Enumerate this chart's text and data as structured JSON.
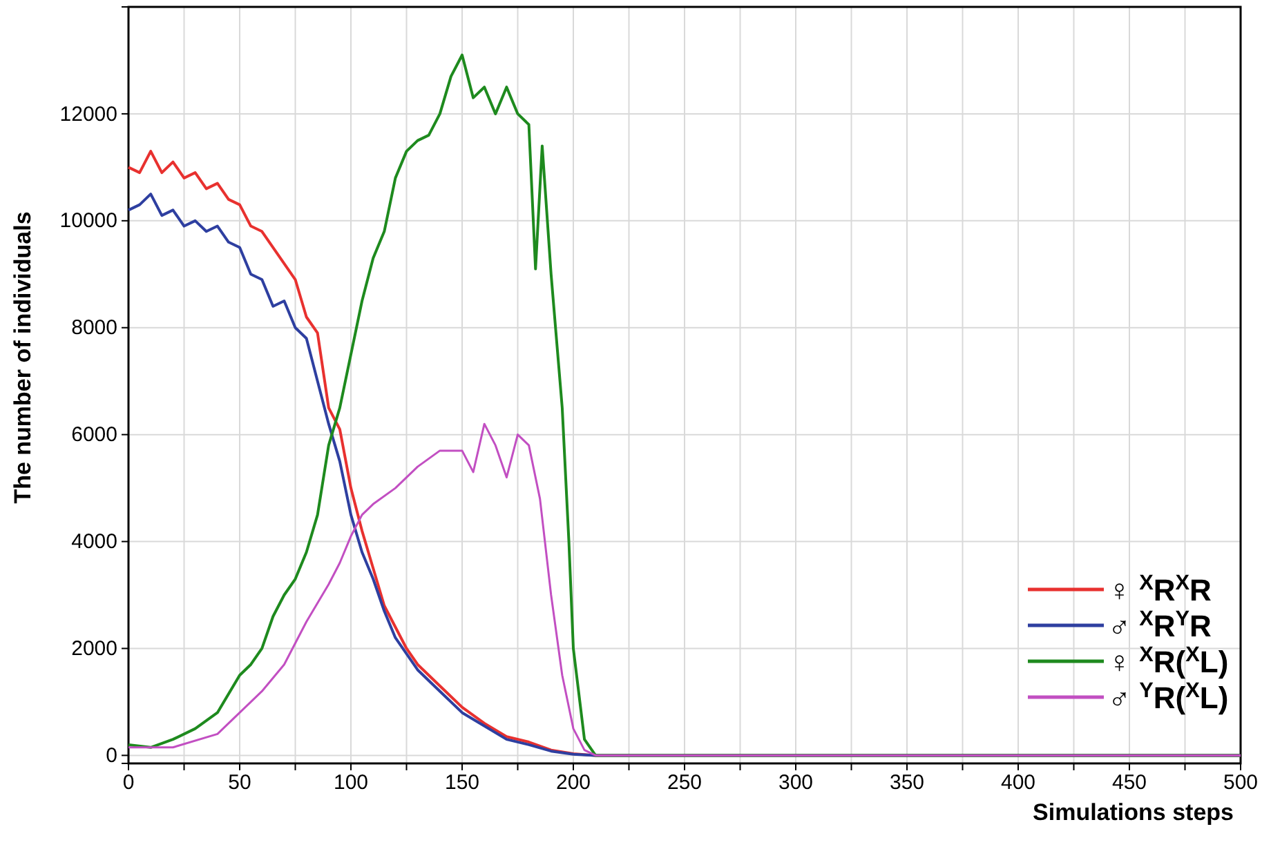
{
  "chart_data": {
    "type": "line",
    "xlabel": "Simulations steps",
    "ylabel": "The number of individuals",
    "xlim": [
      0,
      500
    ],
    "ylim": [
      -150,
      14000
    ],
    "xticks": [
      0,
      {
        "value": 25,
        "label": null
      },
      50,
      {
        "value": 75,
        "label": null
      },
      100,
      {
        "value": 125,
        "label": null
      },
      150,
      {
        "value": 175,
        "label": null
      },
      200,
      {
        "value": 225,
        "label": null
      },
      250,
      {
        "value": 275,
        "label": null
      },
      300,
      {
        "value": 325,
        "label": null
      },
      350,
      {
        "value": 375,
        "label": null
      },
      400,
      {
        "value": 425,
        "label": null
      },
      450,
      {
        "value": 475,
        "label": null
      },
      500
    ],
    "yticks": [
      0,
      2000,
      4000,
      6000,
      8000,
      10000,
      12000
    ],
    "grid": true,
    "legend": "bottom right",
    "marker": "none",
    "line_style": "solid",
    "series": [
      {
        "name": "♀ $^{X}$R$^{X}$R",
        "color": "#e8312f",
        "x": [
          0,
          5,
          10,
          15,
          20,
          25,
          30,
          35,
          40,
          45,
          50,
          55,
          60,
          65,
          70,
          75,
          80,
          85,
          90,
          95,
          100,
          105,
          110,
          115,
          120,
          125,
          130,
          140,
          150,
          160,
          170,
          180,
          190,
          200,
          210,
          500
        ],
        "values": [
          11000,
          10900,
          11300,
          10900,
          11100,
          10800,
          10900,
          10600,
          10700,
          10400,
          10300,
          9900,
          9800,
          9500,
          9200,
          8900,
          8200,
          7900,
          6500,
          6100,
          5000,
          4200,
          3500,
          2800,
          2400,
          2000,
          1700,
          1300,
          900,
          600,
          350,
          250,
          100,
          30,
          0,
          0
        ]
      },
      {
        "name": "♂ $^{X}$R$^{Y}$R",
        "color": "#2e3fa0",
        "x": [
          0,
          5,
          10,
          15,
          20,
          25,
          30,
          35,
          40,
          45,
          50,
          55,
          60,
          65,
          70,
          75,
          80,
          85,
          90,
          95,
          100,
          105,
          110,
          115,
          120,
          130,
          140,
          150,
          160,
          170,
          180,
          190,
          200,
          210,
          500
        ],
        "values": [
          10200,
          10300,
          10500,
          10100,
          10200,
          9900,
          10000,
          9800,
          9900,
          9600,
          9500,
          9000,
          8900,
          8400,
          8500,
          8000,
          7800,
          7000,
          6200,
          5500,
          4500,
          3800,
          3300,
          2700,
          2200,
          1600,
          1200,
          800,
          550,
          300,
          200,
          80,
          20,
          0,
          0
        ]
      },
      {
        "name": "♀ $^{X}$R($^{X}$L)",
        "color": "#1e8a1e",
        "x": [
          0,
          10,
          20,
          30,
          40,
          50,
          55,
          60,
          65,
          70,
          75,
          80,
          85,
          90,
          95,
          100,
          105,
          110,
          115,
          120,
          125,
          130,
          135,
          140,
          145,
          150,
          155,
          160,
          165,
          170,
          175,
          180,
          183,
          186,
          190,
          195,
          198,
          200,
          205,
          210,
          500
        ],
        "values": [
          200,
          150,
          300,
          500,
          800,
          1500,
          1700,
          2000,
          2600,
          3000,
          3300,
          3800,
          4500,
          5800,
          6500,
          7500,
          8500,
          9300,
          9800,
          10800,
          11300,
          11500,
          11600,
          12000,
          12700,
          13100,
          12300,
          12500,
          12000,
          12500,
          12000,
          11800,
          9100,
          11400,
          9000,
          6500,
          4000,
          2000,
          300,
          0,
          0
        ]
      },
      {
        "name": "♂ $^{Y}$R($^{X}$L)",
        "color": "#c24fc2",
        "x": [
          0,
          20,
          40,
          50,
          60,
          70,
          80,
          90,
          95,
          100,
          105,
          110,
          120,
          130,
          140,
          150,
          155,
          160,
          165,
          170,
          175,
          180,
          185,
          190,
          195,
          200,
          205,
          210,
          500
        ],
        "values": [
          150,
          150,
          400,
          800,
          1200,
          1700,
          2500,
          3200,
          3600,
          4100,
          4500,
          4700,
          5000,
          5400,
          5700,
          5700,
          5300,
          6200,
          5800,
          5200,
          6000,
          5800,
          4800,
          3000,
          1500,
          500,
          100,
          0,
          0
        ]
      }
    ]
  }
}
